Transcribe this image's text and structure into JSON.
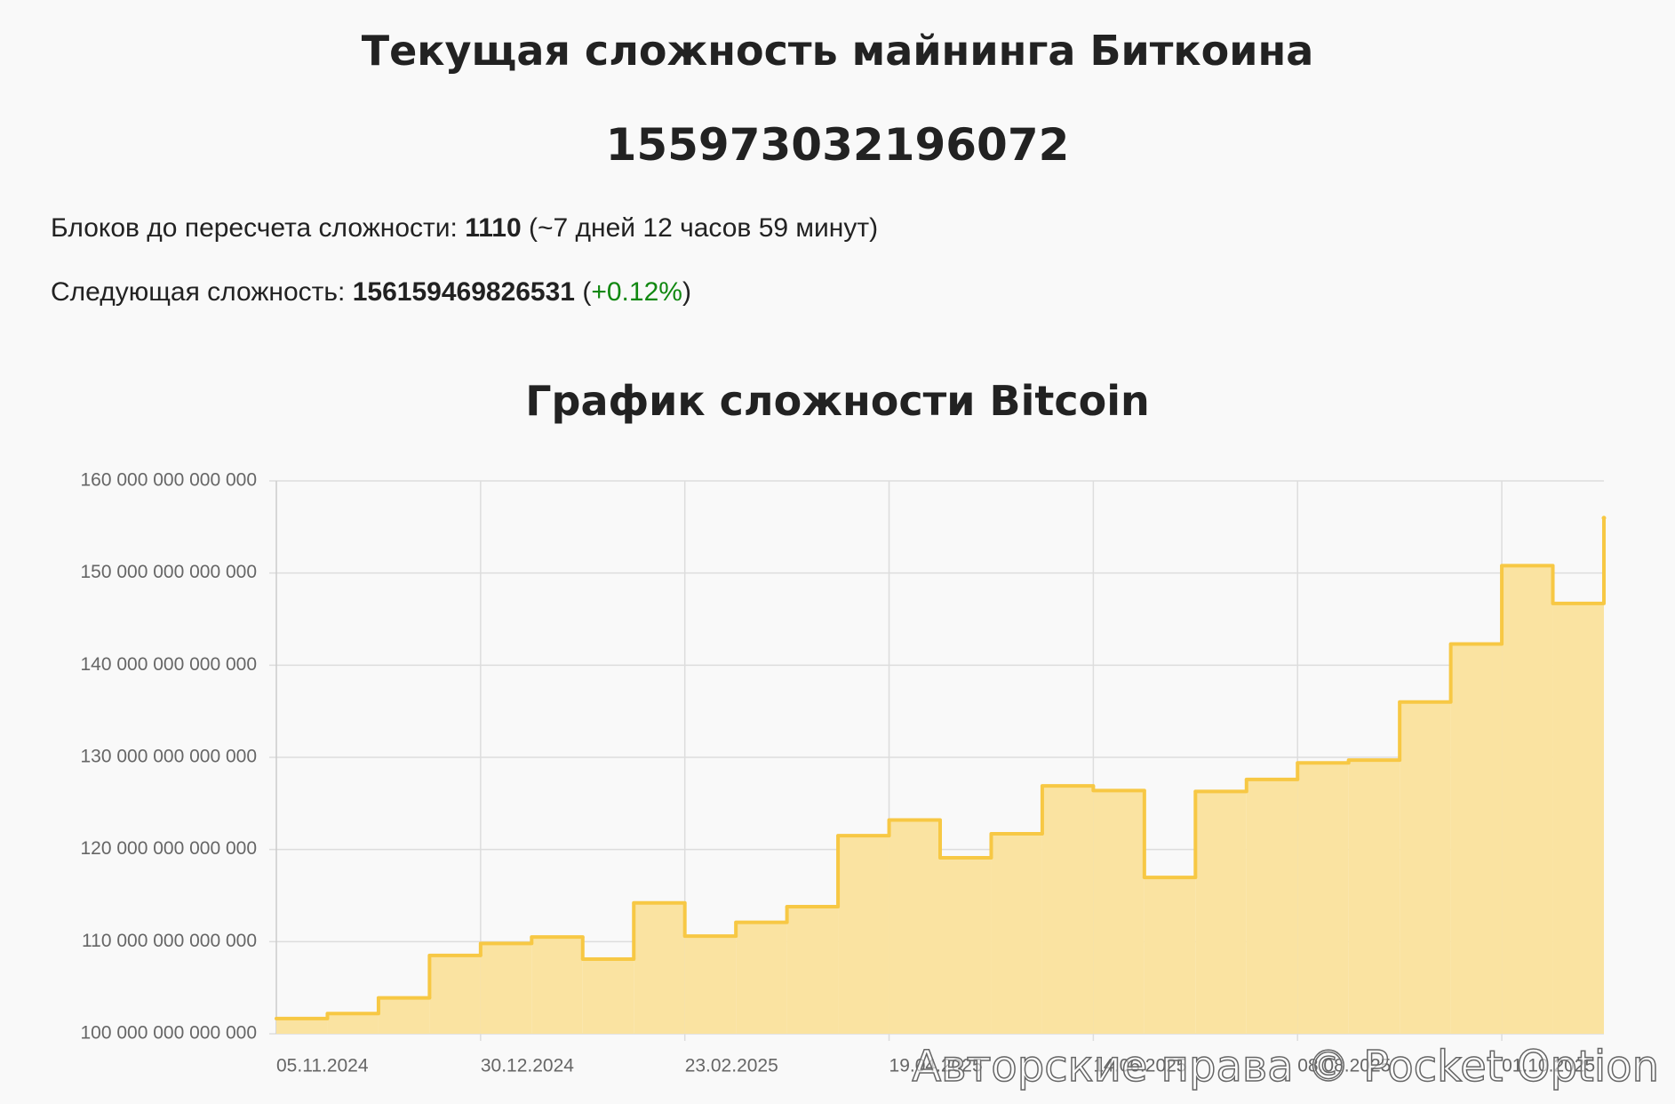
{
  "header": {
    "title": "Текущая сложность майнинга Биткоина",
    "current": "155973032196072",
    "blocks_label": "Блоков до пересчета сложности:",
    "blocks_value": "1110",
    "blocks_note": "(~7 дней 12 часов 59 минут)",
    "next_label": "Следующая сложность:",
    "next_value": "156159469826531",
    "open": "(",
    "next_change": "+0.12%",
    "close": ")",
    "watermark": "Авторские права © Pocket Option"
  },
  "chart_data": {
    "type": "step",
    "title": "График сложности Bitcoin",
    "categories": [
      "05.11.2024",
      null,
      null,
      null,
      "30.12.2024",
      null,
      null,
      null,
      "23.02.2025",
      null,
      null,
      null,
      "19.04.2025",
      null,
      null,
      null,
      "14.06.2025",
      null,
      null,
      null,
      "08.08.2025",
      null,
      null,
      null,
      "01.10.2025",
      null,
      null
    ],
    "series": [
      {
        "name": "Сложность",
        "color": "#f7c844",
        "fill": "#fae3a1",
        "values": [
          101650000000000,
          102200000000000,
          103900000000000,
          108500000000000,
          109800000000000,
          110500000000000,
          108100000000000,
          114200000000000,
          110600000000000,
          112100000000000,
          113800000000000,
          121500000000000,
          123200000000000,
          119100000000000,
          121700000000000,
          126900000000000,
          126400000000000,
          116960000000000,
          126300000000000,
          127600000000000,
          129400000000000,
          129700000000000,
          136000000000000,
          142300000000000,
          150800000000000,
          146700000000000,
          155973032196072
        ]
      }
    ],
    "ylim": [
      100000000000000,
      160000000000000
    ],
    "yticks": [
      {
        "value": 100000000000000,
        "label": "100 000 000 000 000"
      },
      {
        "value": 110000000000000,
        "label": "110 000 000 000 000"
      },
      {
        "value": 120000000000000,
        "label": "120 000 000 000 000"
      },
      {
        "value": 130000000000000,
        "label": "130 000 000 000 000"
      },
      {
        "value": 140000000000000,
        "label": "140 000 000 000 000"
      },
      {
        "value": 150000000000000,
        "label": "150 000 000 000 000"
      },
      {
        "value": 160000000000000,
        "label": "160 000 000 000 000"
      }
    ],
    "grid": true
  }
}
